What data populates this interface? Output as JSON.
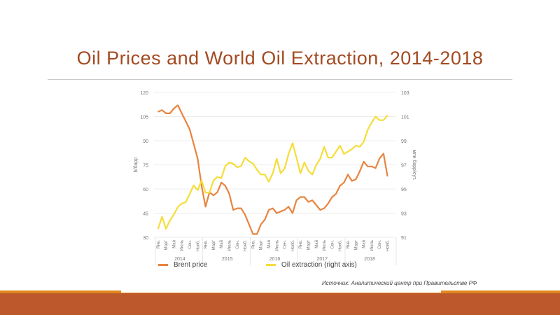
{
  "title": "Oil Prices and World Oil Extraction, 2014-2018",
  "source": "Источник: Аналитический центр при Правительстве РФ",
  "colors": {
    "brent": "#e8843f",
    "extraction": "#f5dd3a",
    "title": "#a34a22",
    "band": "#bc582b"
  },
  "chart_data": {
    "type": "line",
    "title": "Oil Prices and World Oil Extraction, 2014-2018",
    "ylabel": "$/барр",
    "y2label": "млн барр/сут.",
    "ylim": [
      30,
      120
    ],
    "y2lim": [
      91,
      103
    ],
    "yticks": [
      "30",
      "45",
      "60",
      "75",
      "90",
      "105",
      "120"
    ],
    "y2ticks": [
      "91",
      "93",
      "95",
      "97",
      "99",
      "101",
      "103"
    ],
    "month_ticks": [
      "Янв.",
      "Март",
      "Май",
      "Июль",
      "Сен.",
      "Нояб."
    ],
    "years": [
      "2014",
      "2015",
      "2016",
      "2017",
      "2018"
    ],
    "grid": true,
    "legend_position": "bottom",
    "series": [
      {
        "name": "Brent price",
        "axis": "left",
        "values": [
          108,
          109,
          107,
          107,
          110,
          112,
          107,
          102,
          97,
          88,
          79,
          62,
          49,
          58,
          56,
          58,
          64,
          62,
          57,
          47,
          48,
          48,
          44,
          38,
          32,
          32,
          38,
          41,
          47,
          48,
          45,
          46,
          47,
          49,
          45,
          53,
          55,
          55,
          52,
          53,
          50,
          47,
          48,
          51,
          55,
          57,
          62,
          64,
          69,
          65,
          66,
          71,
          77,
          74,
          74,
          73,
          79,
          82,
          68
        ]
      },
      {
        "name": "Oil extraction (right axis)",
        "axis": "right",
        "values": [
          91.7,
          92.7,
          91.7,
          92.4,
          92.9,
          93.5,
          93.8,
          93.9,
          94.6,
          95.3,
          94.9,
          95.7,
          94.7,
          94.7,
          95.7,
          96.0,
          95.9,
          96.9,
          97.2,
          97.1,
          96.8,
          96.9,
          97.6,
          97.3,
          97.1,
          96.6,
          96.2,
          96.2,
          95.6,
          96.3,
          97.5,
          96.3,
          96.7,
          97.9,
          98.8,
          97.6,
          96.3,
          97.2,
          96.5,
          96.2,
          97.0,
          97.5,
          98.5,
          97.6,
          97.6,
          98.1,
          98.6,
          97.9,
          98.1,
          98.3,
          98.6,
          98.5,
          98.9,
          99.9,
          100.5,
          101.0,
          100.7,
          100.7,
          101.1
        ]
      }
    ]
  }
}
